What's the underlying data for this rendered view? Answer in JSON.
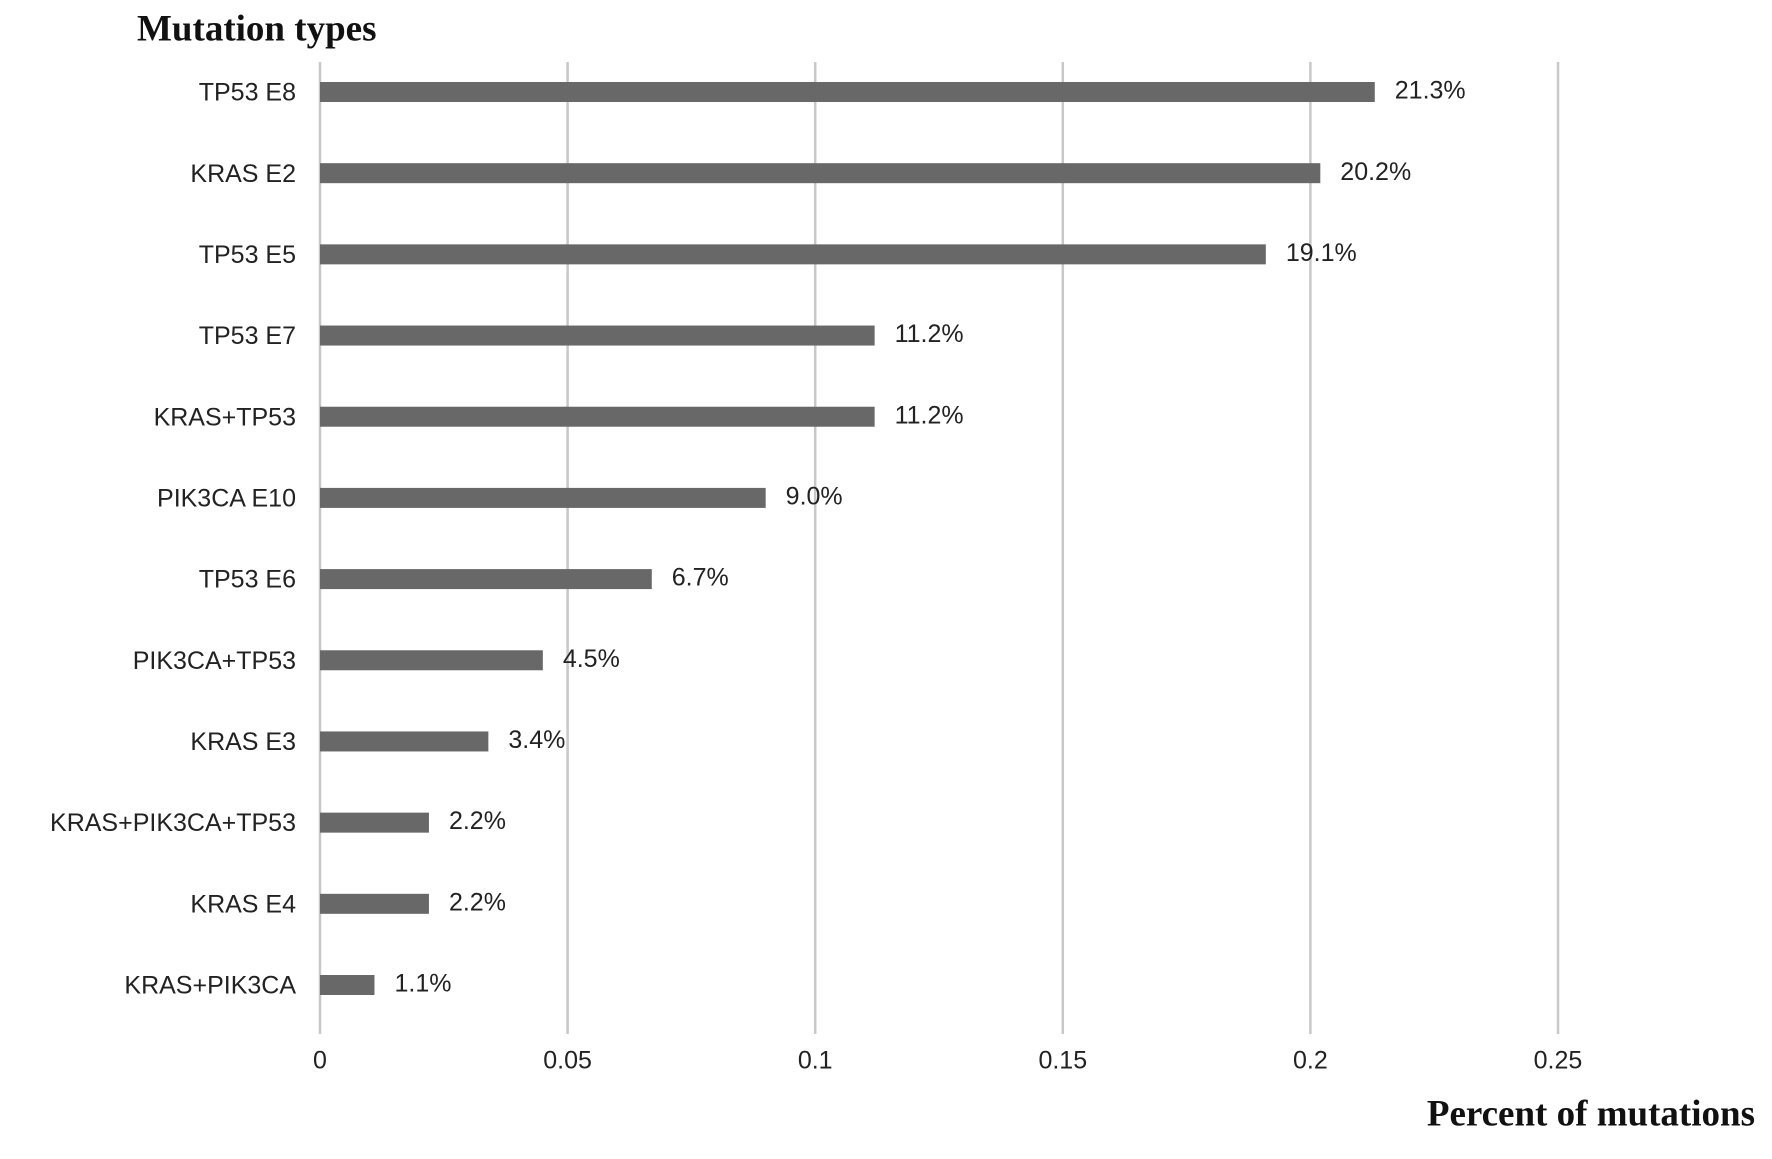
{
  "chart_data": {
    "type": "bar",
    "orientation": "horizontal",
    "title": "Mutation types",
    "x_label": "Percent of mutations",
    "categories": [
      "TP53 E8",
      "KRAS E2",
      "TP53 E5",
      "TP53 E7",
      "KRAS+TP53",
      "PIK3CA E10",
      "TP53 E6",
      "PIK3CA+TP53",
      "KRAS E3",
      "KRAS+PIK3CA+TP53",
      "KRAS E4",
      "KRAS+PIK3CA"
    ],
    "values": [
      0.213,
      0.202,
      0.191,
      0.112,
      0.112,
      0.09,
      0.067,
      0.045,
      0.034,
      0.022,
      0.022,
      0.011
    ],
    "value_labels": [
      "21.3%",
      "20.2%",
      "19.1%",
      "11.2%",
      "11.2%",
      "9.0%",
      "6.7%",
      "4.5%",
      "3.4%",
      "2.2%",
      "2.2%",
      "1.1%"
    ],
    "color": "#686868",
    "xlim": [
      0,
      0.25
    ],
    "xticks": [
      0,
      0.05,
      0.1,
      0.15,
      0.2,
      0.25
    ],
    "grid": true
  }
}
